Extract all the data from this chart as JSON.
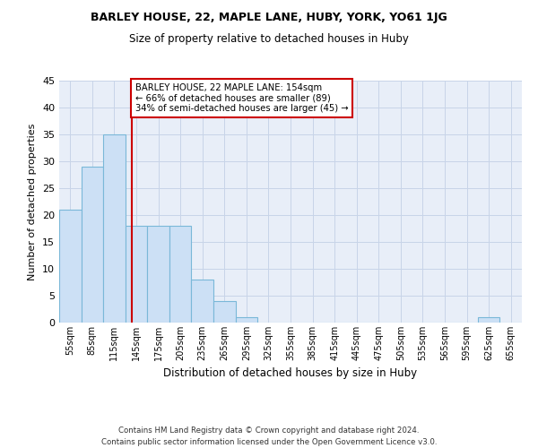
{
  "title1": "BARLEY HOUSE, 22, MAPLE LANE, HUBY, YORK, YO61 1JG",
  "title2": "Size of property relative to detached houses in Huby",
  "xlabel": "Distribution of detached houses by size in Huby",
  "ylabel": "Number of detached properties",
  "footnote": "Contains HM Land Registry data © Crown copyright and database right 2024.\nContains public sector information licensed under the Open Government Licence v3.0.",
  "bin_labels": [
    "55sqm",
    "85sqm",
    "115sqm",
    "145sqm",
    "175sqm",
    "205sqm",
    "235sqm",
    "265sqm",
    "295sqm",
    "325sqm",
    "355sqm",
    "385sqm",
    "415sqm",
    "445sqm",
    "475sqm",
    "505sqm",
    "535sqm",
    "565sqm",
    "595sqm",
    "625sqm",
    "655sqm"
  ],
  "bar_values": [
    21,
    29,
    35,
    18,
    18,
    18,
    8,
    4,
    1,
    0,
    0,
    0,
    0,
    0,
    0,
    0,
    0,
    0,
    0,
    1,
    0
  ],
  "bar_color": "#cce0f5",
  "bar_edge_color": "#7ab8d8",
  "red_line_x": 3.3,
  "annotation_text": "BARLEY HOUSE, 22 MAPLE LANE: 154sqm\n← 66% of detached houses are smaller (89)\n34% of semi-detached houses are larger (45) →",
  "annotation_box_color": "white",
  "annotation_box_edge_color": "#cc0000",
  "red_line_color": "#cc0000",
  "ylim": [
    0,
    45
  ],
  "yticks": [
    0,
    5,
    10,
    15,
    20,
    25,
    30,
    35,
    40,
    45
  ],
  "grid_color": "#c8d4e8",
  "bg_color": "#e8eef8"
}
